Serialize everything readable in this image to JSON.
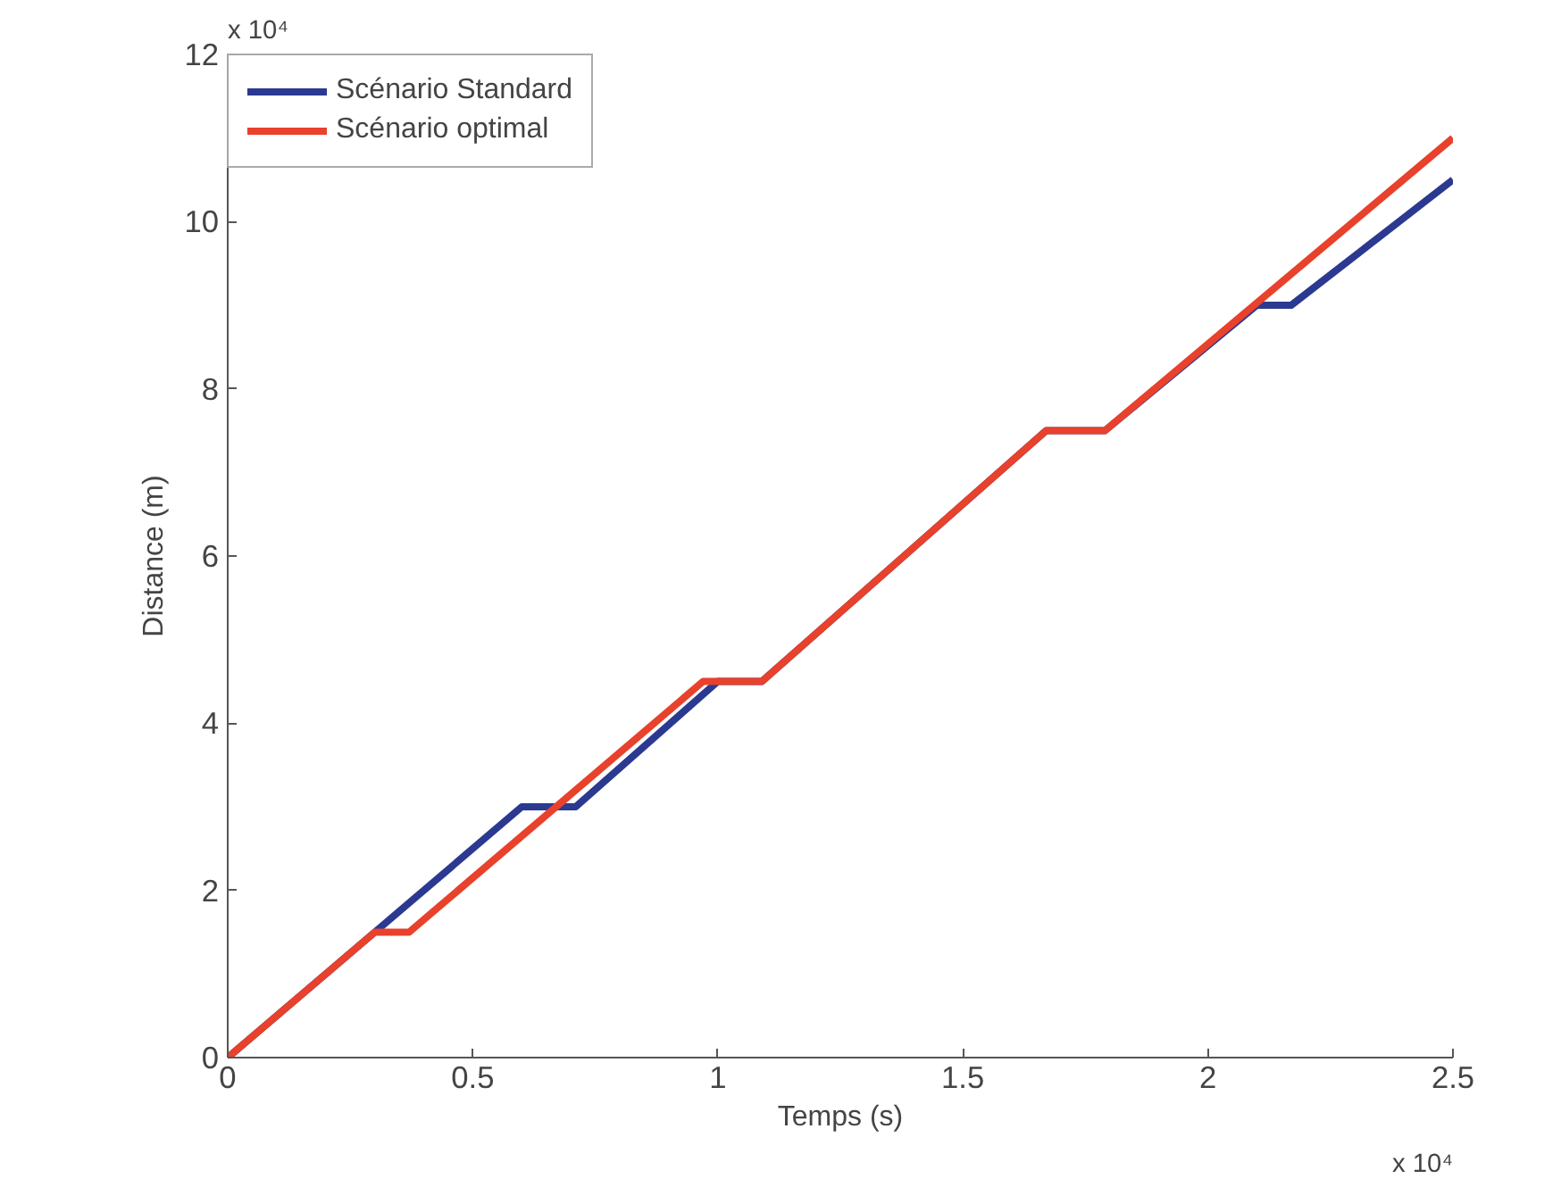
{
  "chart_data": {
    "type": "line",
    "xlabel": "Temps (s)",
    "ylabel": "Distance (m)",
    "xlim": [
      0,
      2.5
    ],
    "ylim": [
      0,
      12
    ],
    "xticks": [
      0,
      0.5,
      1,
      1.5,
      2,
      2.5
    ],
    "yticks": [
      0,
      2,
      4,
      6,
      8,
      10,
      12
    ],
    "annotations": [
      "x 10⁴",
      "x 10⁴"
    ],
    "legend": "top left",
    "grid": false,
    "series": [
      {
        "name": "Scénario Standard",
        "color": "#2b3990",
        "x": [
          0,
          0.3,
          0.6,
          0.71,
          1.0,
          1.09,
          1.67,
          1.79,
          2.1,
          2.17,
          2.5
        ],
        "values": [
          0,
          1.5,
          3,
          3,
          4.5,
          4.5,
          7.5,
          7.5,
          9,
          9,
          10.5
        ]
      },
      {
        "name": "Scénario optimal",
        "color": "#e8412c",
        "x": [
          0,
          0.3,
          0.37,
          0.97,
          1.09,
          1.67,
          1.79,
          2.5
        ],
        "values": [
          0,
          1.5,
          1.5,
          4.5,
          4.5,
          7.5,
          7.5,
          11
        ]
      }
    ]
  }
}
